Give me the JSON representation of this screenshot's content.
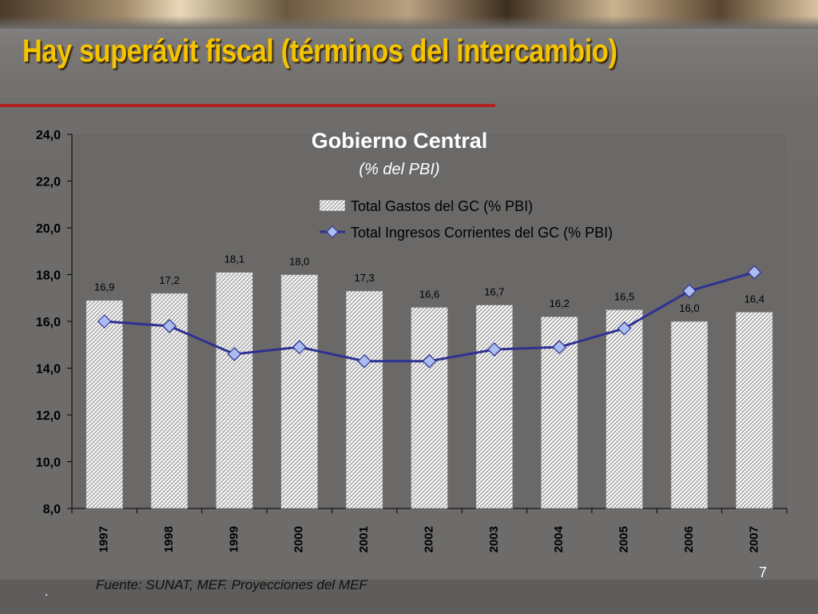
{
  "slide": {
    "title": "Hay superávit fiscal (términos del intercambio)",
    "source": "Fuente: SUNAT, MEF. Proyecciones del MEF",
    "page_number": "7",
    "footer_mark": "."
  },
  "colors": {
    "title": "#f5c400",
    "rule": "#b22222",
    "line": "#2e3192",
    "marker_fill": "#aabcf0",
    "bar_hatch": "#8a8a8a"
  },
  "chart_data": {
    "type": "bar",
    "title": "Gobierno Central",
    "subtitle": "(% del PBI)",
    "categories": [
      "1997",
      "1998",
      "1999",
      "2000",
      "2001",
      "2002",
      "2003",
      "2004",
      "2005",
      "2006",
      "2007"
    ],
    "ylim": [
      8,
      24
    ],
    "yticks": [
      8,
      10,
      12,
      14,
      16,
      18,
      20,
      22,
      24
    ],
    "ytick_labels": [
      "8,0",
      "10,0",
      "12,0",
      "14,0",
      "16,0",
      "18,0",
      "20,0",
      "22,0",
      "24,0"
    ],
    "grid": false,
    "legend_position": "top-right",
    "series": [
      {
        "name": "Total Gastos del GC (% PBI)",
        "type": "bar",
        "values": [
          16.9,
          17.2,
          18.1,
          18.0,
          17.3,
          16.6,
          16.7,
          16.2,
          16.5,
          16.0,
          16.4
        ],
        "labels": [
          "16,9",
          "17,2",
          "18,1",
          "18,0",
          "17,3",
          "16,6",
          "16,7",
          "16,2",
          "16,5",
          "16,0",
          "16,4"
        ]
      },
      {
        "name": "Total Ingresos Corrientes del GC (% PBI)",
        "type": "line",
        "values": [
          16.0,
          15.8,
          14.6,
          14.9,
          14.3,
          14.3,
          14.8,
          14.9,
          15.7,
          17.3,
          18.1
        ]
      }
    ]
  }
}
